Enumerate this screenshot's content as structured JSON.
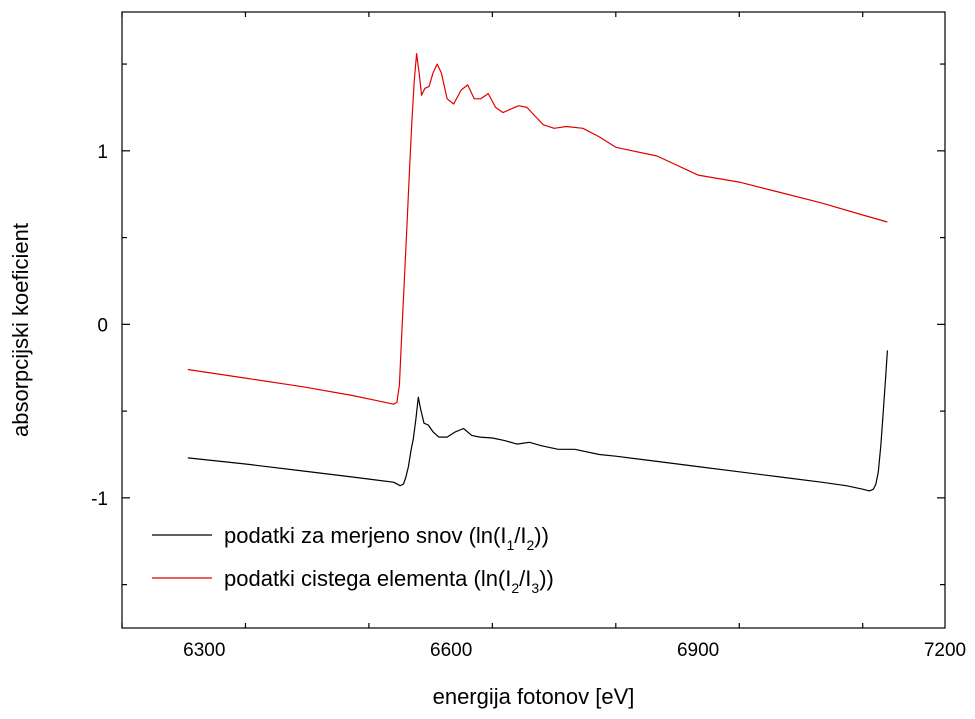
{
  "chart_data": {
    "type": "line",
    "xlabel": "energija fotonov [eV]",
    "ylabel": "absorpcijski koeficient",
    "xlim": [
      6200,
      7200
    ],
    "ylim": [
      -1.75,
      1.8
    ],
    "xticks": [
      6300,
      6600,
      6900,
      7200
    ],
    "xtick_labels": [
      "6300",
      "6600",
      "6900",
      "7200"
    ],
    "yticks": [
      -1,
      0,
      1
    ],
    "ytick_labels": [
      "-1",
      "0",
      "1"
    ],
    "grid": false,
    "legend_position": "bottom-left",
    "series": [
      {
        "name": "podatki za merjeno snov (ln(I1/I2))",
        "legend_parts": {
          "prefix": "podatki za merjeno snov (ln(I",
          "sub1": "1",
          "mid": "/I",
          "sub2": "2",
          "suffix": "))"
        },
        "color": "#000000",
        "x": [
          6280,
          6350,
          6420,
          6480,
          6530,
          6538,
          6542,
          6545,
          6548,
          6551,
          6554,
          6557,
          6560,
          6563,
          6567,
          6572,
          6578,
          6585,
          6595,
          6605,
          6615,
          6625,
          6635,
          6650,
          6665,
          6680,
          6695,
          6710,
          6730,
          6750,
          6780,
          6800,
          6850,
          6900,
          6950,
          7000,
          7050,
          7080,
          7100,
          7108,
          7113,
          7116,
          7119,
          7122,
          7125,
          7128,
          7130
        ],
        "y": [
          -0.77,
          -0.805,
          -0.845,
          -0.88,
          -0.91,
          -0.93,
          -0.92,
          -0.88,
          -0.82,
          -0.73,
          -0.66,
          -0.55,
          -0.42,
          -0.49,
          -0.57,
          -0.58,
          -0.62,
          -0.65,
          -0.65,
          -0.62,
          -0.6,
          -0.64,
          -0.65,
          -0.655,
          -0.67,
          -0.69,
          -0.68,
          -0.7,
          -0.72,
          -0.72,
          -0.75,
          -0.76,
          -0.79,
          -0.82,
          -0.85,
          -0.88,
          -0.91,
          -0.93,
          -0.95,
          -0.96,
          -0.95,
          -0.92,
          -0.85,
          -0.7,
          -0.5,
          -0.3,
          -0.15
        ]
      },
      {
        "name": "podatki cistega elementa (ln(I2/I3))",
        "legend_parts": {
          "prefix": "podatki cistega elementa (ln(I",
          "sub1": "2",
          "mid": "/I",
          "sub2": "3",
          "suffix": "))"
        },
        "color": "#e00000",
        "x": [
          6280,
          6350,
          6420,
          6480,
          6520,
          6530,
          6534,
          6537,
          6540,
          6543,
          6546,
          6549,
          6552,
          6555,
          6558,
          6561,
          6564,
          6568,
          6573,
          6578,
          6583,
          6588,
          6595,
          6603,
          6612,
          6620,
          6628,
          6636,
          6645,
          6654,
          6663,
          6672,
          6682,
          6692,
          6702,
          6712,
          6725,
          6740,
          6760,
          6780,
          6800,
          6820,
          6850,
          6900,
          6950,
          7000,
          7050,
          7100,
          7130
        ],
        "y": [
          -0.26,
          -0.31,
          -0.36,
          -0.41,
          -0.45,
          -0.46,
          -0.45,
          -0.35,
          -0.05,
          0.25,
          0.55,
          0.85,
          1.15,
          1.4,
          1.56,
          1.45,
          1.32,
          1.36,
          1.37,
          1.45,
          1.5,
          1.45,
          1.3,
          1.27,
          1.35,
          1.38,
          1.3,
          1.3,
          1.33,
          1.25,
          1.22,
          1.24,
          1.26,
          1.25,
          1.2,
          1.15,
          1.13,
          1.14,
          1.13,
          1.08,
          1.02,
          1.0,
          0.97,
          0.86,
          0.82,
          0.76,
          0.7,
          0.63,
          0.59
        ]
      }
    ]
  }
}
